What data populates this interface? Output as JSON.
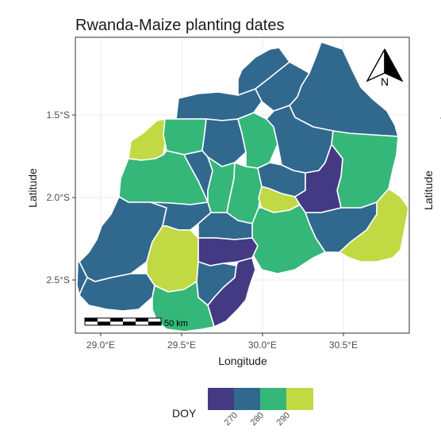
{
  "map": {
    "title": "Rwanda-Maize planting dates",
    "x_axis": {
      "label": "Longitude",
      "ticks": [
        "29.0°E",
        "29.5°E",
        "30.0°E",
        "30.5°E"
      ]
    },
    "y_axis": {
      "label": "Latitude",
      "ticks": [
        "1.5°S",
        "2.0°S",
        "2.5°S"
      ]
    },
    "north_arrow": {
      "label": "N",
      "icon": "north-arrow-icon"
    },
    "scale_bar": {
      "label": "50 km",
      "icon": "scale-bar-icon"
    },
    "legend": {
      "title": "DOY",
      "labels": [
        "270",
        "280",
        "290"
      ],
      "colors": [
        "#443a83",
        "#31688e",
        "#35b779",
        "#c1d943"
      ]
    },
    "colors": {
      "c270": "#443a83",
      "c280": "#31688e",
      "c285": "#35b779",
      "c290": "#c1d943",
      "panel_background": "#ffffff",
      "grid": "#ebebeb",
      "panel_border": "#333333"
    },
    "grid": true
  },
  "chart_data": {
    "type": "map",
    "title": "Rwanda-Maize planting dates",
    "xlabel": "Longitude",
    "ylabel": "Latitude",
    "xlim": [
      28.85,
      30.9
    ],
    "ylim": [
      -2.85,
      -1.05
    ],
    "legend": {
      "title": "DOY",
      "breaks": [
        270,
        280,
        290
      ]
    }
  },
  "clipped_panel": {
    "latitude_label": "Latitude",
    "y_ticks": [
      "2.0"
    ]
  }
}
